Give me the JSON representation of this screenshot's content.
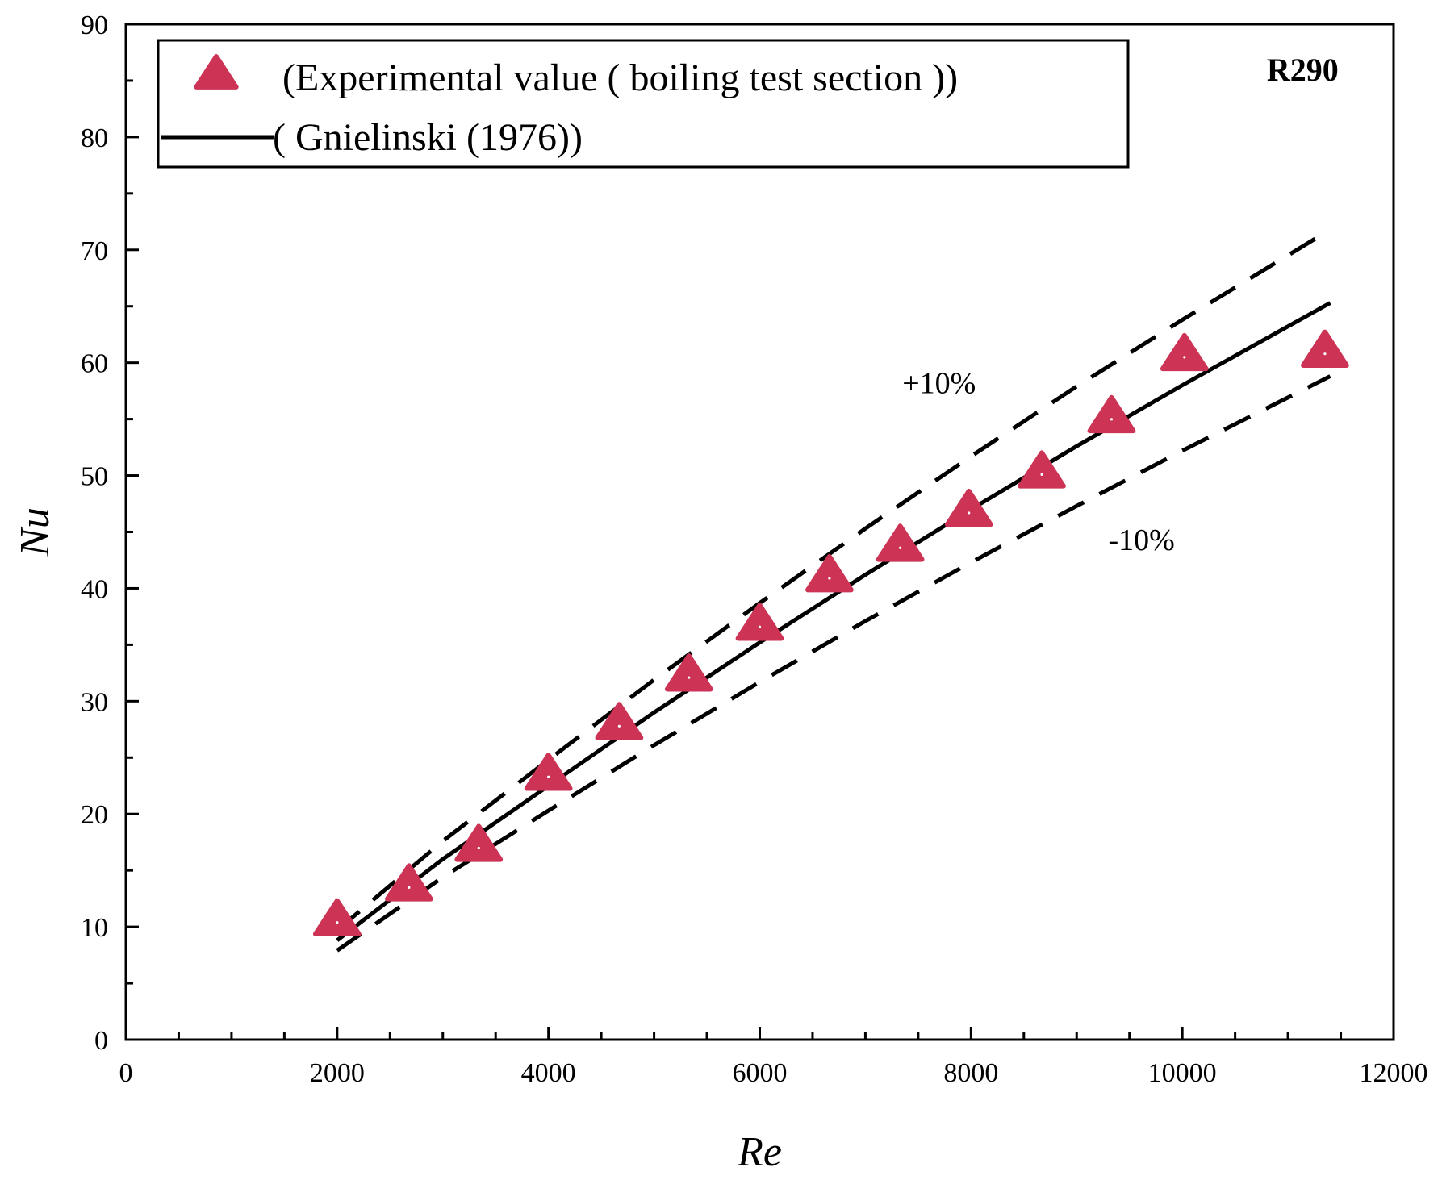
{
  "chart_data": {
    "type": "scatter",
    "xlabel": "Re",
    "ylabel": "Nu",
    "xlim": [
      0,
      12000
    ],
    "ylim": [
      0,
      90
    ],
    "xticks": [
      0,
      2000,
      4000,
      6000,
      8000,
      10000,
      12000
    ],
    "yticks": [
      0,
      10,
      20,
      30,
      40,
      50,
      60,
      70,
      80,
      90
    ],
    "legend_position": "top-left",
    "colors": {
      "marker": "#cc3355",
      "line": "#000000"
    },
    "series": [
      {
        "name": "(Experimental value ( boiling test section ))",
        "kind": "markers",
        "marker": "triangle",
        "x": [
          2000,
          2680,
          3340,
          4000,
          4670,
          5330,
          6000,
          6660,
          7330,
          7980,
          8670,
          9330,
          10020,
          11350
        ],
        "y": [
          10.6,
          13.7,
          17.2,
          23.5,
          28.0,
          32.3,
          36.8,
          41.1,
          43.8,
          46.9,
          50.3,
          55.2,
          60.7,
          61.0
        ]
      },
      {
        "name": "( Gnielinski (1976))",
        "kind": "line",
        "x": [
          2000,
          3000,
          4000,
          5000,
          6000,
          7000,
          8000,
          9000,
          10000,
          11400
        ],
        "y": [
          8.8,
          16.0,
          22.5,
          29.0,
          35.2,
          41.2,
          47.0,
          52.6,
          58.0,
          65.3
        ]
      },
      {
        "kind": "dashed",
        "label": "+10%",
        "x": [
          2000,
          3000,
          4000,
          5000,
          6000,
          7000,
          8000,
          9000,
          10000,
          11400
        ],
        "y": [
          9.7,
          17.6,
          24.8,
          31.9,
          38.7,
          45.3,
          51.7,
          57.9,
          63.8,
          71.8
        ]
      },
      {
        "kind": "dashed",
        "label": "-10%",
        "x": [
          2000,
          3000,
          4000,
          5000,
          6000,
          7000,
          8000,
          9000,
          10000,
          11400
        ],
        "y": [
          7.9,
          14.4,
          20.3,
          26.1,
          31.7,
          37.1,
          42.3,
          47.3,
          52.2,
          58.8
        ]
      }
    ],
    "annotations": [
      {
        "text": "+10%",
        "x": 7350,
        "y": 57.3
      },
      {
        "text": "-10%",
        "x": 9300,
        "y": 43.4
      },
      {
        "text": "R290",
        "x": 10800,
        "y": 85,
        "bold": true
      }
    ]
  }
}
